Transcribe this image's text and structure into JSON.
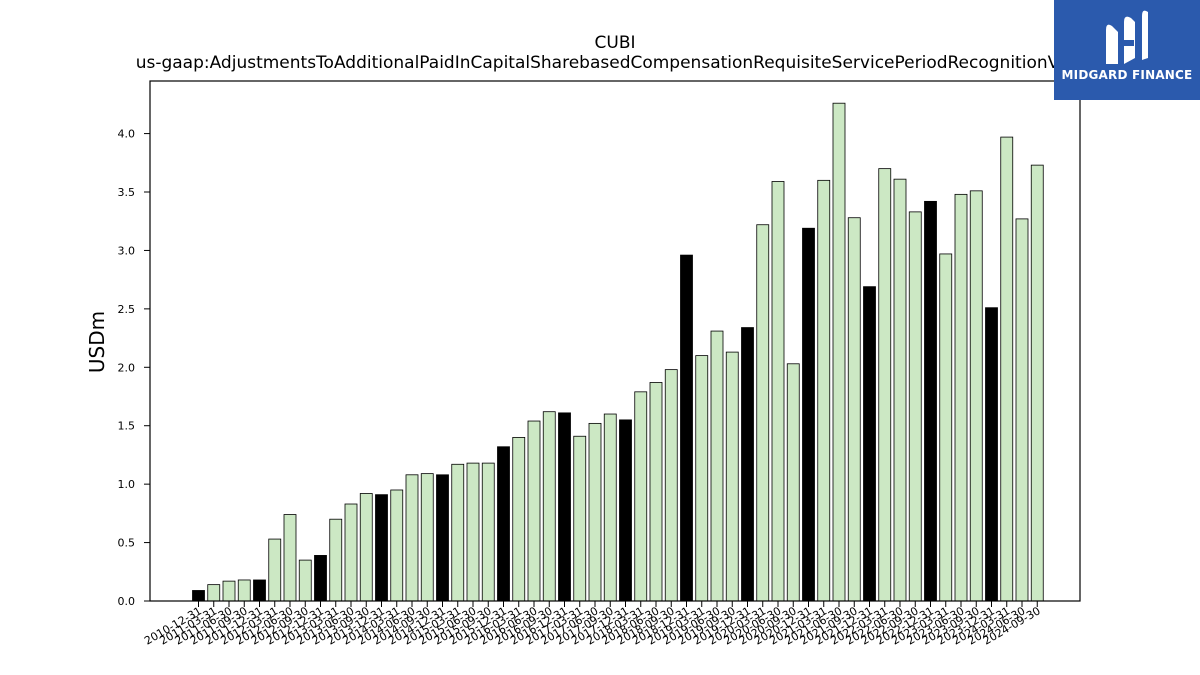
{
  "chart_data": {
    "type": "bar",
    "title": "CUBI",
    "subtitle": "us-gaap:AdjustmentsToAdditionalPaidInCapitalSharebasedCompensationRequisiteServicePeriodRecognitionValue",
    "ylabel": "USDm",
    "xlabel": "",
    "ylim": [
      0,
      4.45
    ],
    "yticks": [
      0.0,
      0.5,
      1.0,
      1.5,
      2.0,
      2.5,
      3.0,
      3.5,
      4.0
    ],
    "ytick_labels": [
      "0.0",
      "0.5",
      "1.0",
      "1.5",
      "2.0",
      "2.5",
      "3.0",
      "3.5",
      "4.0"
    ],
    "colors": {
      "annual": "#000000",
      "quarterly": "#cce8c4",
      "edge": "#000000"
    },
    "categories": [
      "2010-12-31",
      "2011-03-31",
      "2011-06-30",
      "2011-09-30",
      "2011-12-31",
      "2012-03-31",
      "2012-06-30",
      "2012-09-30",
      "2012-12-31",
      "2013-03-31",
      "2013-06-30",
      "2013-09-30",
      "2013-12-31",
      "2014-03-31",
      "2014-06-30",
      "2014-09-30",
      "2014-12-31",
      "2015-03-31",
      "2015-06-30",
      "2015-09-30",
      "2015-12-31",
      "2016-03-31",
      "2016-06-30",
      "2016-09-30",
      "2016-12-31",
      "2017-03-31",
      "2017-06-30",
      "2017-09-30",
      "2017-12-31",
      "2018-03-31",
      "2018-06-30",
      "2018-09-30",
      "2018-12-31",
      "2019-03-31",
      "2019-06-30",
      "2019-09-30",
      "2019-12-31",
      "2020-03-31",
      "2020-06-30",
      "2020-09-30",
      "2020-12-31",
      "2021-03-31",
      "2021-06-30",
      "2021-09-30",
      "2021-12-31",
      "2022-03-31",
      "2022-06-30",
      "2022-09-30",
      "2022-12-31",
      "2023-03-31",
      "2023-06-30",
      "2023-09-30",
      "2023-12-31",
      "2024-03-31",
      "2024-06-30",
      "2024-09-30"
    ],
    "values": [
      0.09,
      0.14,
      0.17,
      0.18,
      0.18,
      0.53,
      0.74,
      0.35,
      0.39,
      0.7,
      0.83,
      0.92,
      0.91,
      0.95,
      1.08,
      1.09,
      1.08,
      1.17,
      1.18,
      1.18,
      1.32,
      1.4,
      1.54,
      1.62,
      1.61,
      1.41,
      1.52,
      1.6,
      1.55,
      1.79,
      1.87,
      1.98,
      2.96,
      2.1,
      2.31,
      2.13,
      2.34,
      3.22,
      3.59,
      2.03,
      3.19,
      3.6,
      4.26,
      3.28,
      2.69,
      3.7,
      3.61,
      3.33,
      3.42,
      2.97,
      3.48,
      3.51,
      2.51,
      3.97,
      3.27,
      3.73
    ],
    "annual": [
      true,
      false,
      false,
      false,
      true,
      false,
      false,
      false,
      true,
      false,
      false,
      false,
      true,
      false,
      false,
      false,
      true,
      false,
      false,
      false,
      true,
      false,
      false,
      false,
      true,
      false,
      false,
      false,
      true,
      false,
      false,
      false,
      true,
      false,
      false,
      false,
      true,
      false,
      false,
      false,
      true,
      false,
      false,
      false,
      true,
      false,
      false,
      false,
      true,
      false,
      false,
      false,
      true,
      false,
      false,
      false
    ]
  },
  "logo": {
    "text": "MIDGARD FINANCE",
    "icon": "midgard-m-logo-icon"
  }
}
